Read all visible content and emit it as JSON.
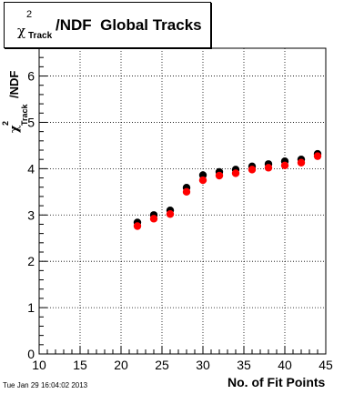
{
  "title": {
    "symbol": "χ",
    "superscript": "2",
    "subscript": "Track",
    "main": "/NDF  Global Tracks"
  },
  "date_stamp": "Tue Jan 29 16:04:02 2013",
  "colors": {
    "series_black": "#000000",
    "series_red": "#ff0000",
    "grid": "#000000"
  },
  "chart_data": {
    "type": "scatter",
    "title": "χ²_Track/NDF  Global Tracks",
    "xlabel": "No. of Fit Points",
    "ylabel": "χ²_Track /NDF",
    "ylabel_parts": {
      "symbol": "χ",
      "superscript": "2",
      "subscript": "Track",
      "suffix": "/NDF"
    },
    "xlim": [
      10,
      45
    ],
    "ylim": [
      0,
      6.6
    ],
    "grid": true,
    "x_ticks": [
      10,
      15,
      20,
      25,
      30,
      35,
      40,
      45
    ],
    "x_tick_labels": [
      "10",
      "15",
      "20",
      "25",
      "30",
      "35",
      "40",
      "45"
    ],
    "y_ticks": [
      0,
      1,
      2,
      3,
      4,
      5,
      6
    ],
    "y_tick_labels": [
      "0",
      "1",
      "2",
      "3",
      "4",
      "5",
      "6"
    ],
    "series": [
      {
        "color": "#000000",
        "x": [
          22,
          24,
          26,
          28,
          30,
          32,
          34,
          36,
          38,
          40,
          42,
          44
        ],
        "y": [
          2.84,
          3.0,
          3.1,
          3.59,
          3.86,
          3.93,
          3.98,
          4.05,
          4.1,
          4.16,
          4.2,
          4.32
        ]
      },
      {
        "color": "#ff0000",
        "x": [
          22,
          24,
          26,
          28,
          30,
          32,
          34,
          36,
          38,
          40,
          42,
          44
        ],
        "y": [
          2.76,
          2.92,
          3.02,
          3.5,
          3.75,
          3.85,
          3.9,
          3.98,
          4.02,
          4.07,
          4.13,
          4.27
        ]
      }
    ]
  }
}
